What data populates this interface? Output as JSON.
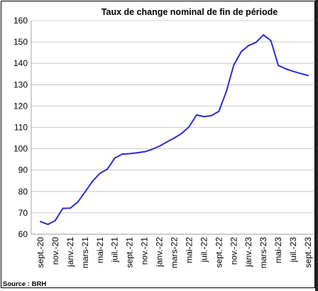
{
  "chart_data": {
    "type": "line",
    "title": "Taux de change nominal de fin de période",
    "source": "Source : BRH",
    "xlabel": "",
    "ylabel": "",
    "ylim": [
      60,
      160
    ],
    "yticks": [
      60,
      70,
      80,
      90,
      100,
      110,
      120,
      130,
      140,
      150,
      160
    ],
    "grid": true,
    "legend": "none",
    "line_color": "#2b2bd6",
    "xtick_labels": [
      "sept.-20",
      "nov.-20",
      "janv.-21",
      "mars-21",
      "mai-21",
      "juil.-21",
      "sept.-21",
      "nov.-21",
      "janv.-22",
      "mars-22",
      "mai-22",
      "juil.-22",
      "sept.-22",
      "nov.-22",
      "janv.-23",
      "mars-23",
      "mai-23",
      "juil.-23",
      "sept.-23"
    ],
    "x": [
      "sept.-20",
      "oct.-20",
      "nov.-20",
      "déc.-20",
      "janv.-21",
      "févr.-21",
      "mars-21",
      "avr.-21",
      "mai-21",
      "juin-21",
      "juil.-21",
      "août-21",
      "sept.-21",
      "oct.-21",
      "nov.-21",
      "déc.-21",
      "janv.-22",
      "févr.-22",
      "mars-22",
      "avr.-22",
      "mai-22",
      "juin-22",
      "juil.-22",
      "août-22",
      "sept.-22",
      "oct.-22",
      "nov.-22",
      "déc.-22",
      "janv.-23",
      "févr.-23",
      "mars-23",
      "avr.-23",
      "mai-23",
      "juin-23",
      "juil.-23",
      "août-23",
      "sept.-23"
    ],
    "series": [
      {
        "values": [
          65.9,
          64.6,
          66.4,
          72.1,
          72.2,
          75.0,
          79.8,
          84.8,
          88.5,
          90.5,
          95.6,
          97.5,
          97.7,
          98.1,
          98.6,
          99.7,
          101.2,
          103.2,
          105.0,
          107.2,
          110.3,
          115.8,
          115.0,
          115.5,
          117.5,
          126.7,
          139.2,
          145.4,
          148.3,
          149.8,
          153.3,
          150.6,
          139.0,
          137.4,
          136.2,
          135.2,
          134.3
        ]
      }
    ]
  }
}
